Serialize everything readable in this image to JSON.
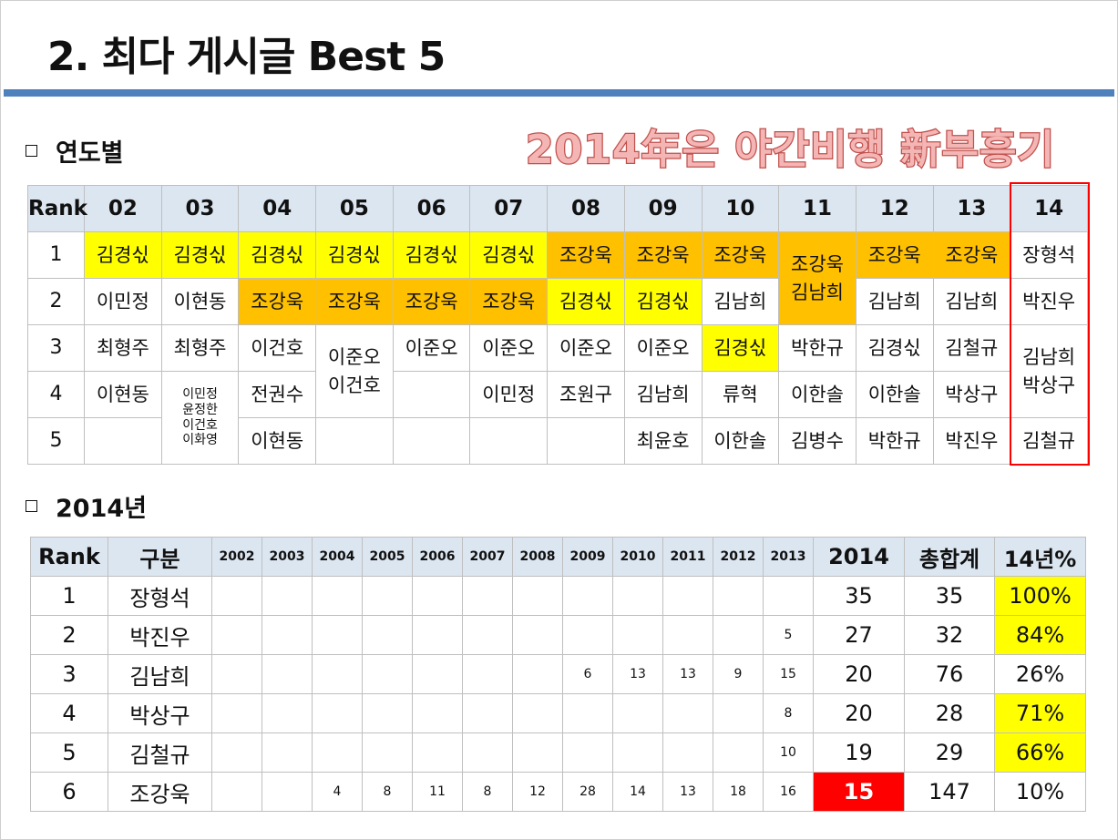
{
  "title": "2. 최다 게시글 Best 5",
  "slogan": "2014年은 야간비행 新부흥기",
  "colors": {
    "accent_bar": "#4f81bd",
    "header_bg": "#dce6f1",
    "yellow": "#ffff00",
    "orange": "#ffc000",
    "red": "#ff0000",
    "slogan": "#c0504d"
  },
  "section_yearly": {
    "heading": "연도별",
    "bullet_icon": "hollow-square"
  },
  "yearly_table": {
    "headers": [
      "Rank",
      "02",
      "03",
      "04",
      "05",
      "06",
      "07",
      "08",
      "09",
      "10",
      "11",
      "12",
      "13",
      "14"
    ],
    "highlighted_column": "14",
    "rows": [
      {
        "rank": "1",
        "cells": [
          {
            "t": "김경싟",
            "bg": "yellow"
          },
          {
            "t": "김경싟",
            "bg": "yellow"
          },
          {
            "t": "김경싟",
            "bg": "yellow"
          },
          {
            "t": "김경싟",
            "bg": "yellow"
          },
          {
            "t": "김경싟",
            "bg": "yellow"
          },
          {
            "t": "김경싟",
            "bg": "yellow"
          },
          {
            "t": "조강욱",
            "bg": "orange"
          },
          {
            "t": "조강욱",
            "bg": "orange"
          },
          {
            "t": "조강욱",
            "bg": "orange"
          },
          {
            "t": "조강욱\n김남희",
            "bg": "orange",
            "rs": 2
          },
          {
            "t": "조강욱",
            "bg": "orange"
          },
          {
            "t": "조강욱",
            "bg": "orange"
          },
          {
            "t": "장형석"
          }
        ]
      },
      {
        "rank": "2",
        "cells": [
          {
            "t": "이민정"
          },
          {
            "t": "이현동"
          },
          {
            "t": "조강욱",
            "bg": "orange"
          },
          {
            "t": "조강욱",
            "bg": "orange"
          },
          {
            "t": "조강욱",
            "bg": "orange"
          },
          {
            "t": "조강욱",
            "bg": "orange"
          },
          {
            "t": "김경싟",
            "bg": "yellow"
          },
          {
            "t": "김경싟",
            "bg": "yellow"
          },
          {
            "t": "김남희"
          },
          null,
          {
            "t": "김남희"
          },
          {
            "t": "김남희"
          },
          {
            "t": "박진우"
          }
        ]
      },
      {
        "rank": "3",
        "cells": [
          {
            "t": "최형주"
          },
          {
            "t": "최형주"
          },
          {
            "t": "이건호"
          },
          {
            "t": "이준오\n이건호",
            "rs": 2
          },
          {
            "t": "이준오"
          },
          {
            "t": "이준오"
          },
          {
            "t": "이준오"
          },
          {
            "t": "이준오"
          },
          {
            "t": "김경싟",
            "bg": "yellow"
          },
          {
            "t": "박한규"
          },
          {
            "t": "김경싟"
          },
          {
            "t": "김철규"
          },
          {
            "t": "김남희\n박상구",
            "rs": 2
          }
        ]
      },
      {
        "rank": "4",
        "cells": [
          {
            "t": "이현동"
          },
          {
            "t": "이민정\n윤정한\n이건호\n이화영",
            "rs": 2,
            "small": true
          },
          {
            "t": "전권수"
          },
          null,
          {
            "t": ""
          },
          {
            "t": "이민정"
          },
          {
            "t": "조원구"
          },
          {
            "t": "김남희"
          },
          {
            "t": "류혁"
          },
          {
            "t": "이한솔"
          },
          {
            "t": "이한솔"
          },
          {
            "t": "박상구"
          },
          null
        ]
      },
      {
        "rank": "5",
        "cells": [
          {
            "t": ""
          },
          null,
          {
            "t": "이현동"
          },
          {
            "t": ""
          },
          {
            "t": ""
          },
          {
            "t": ""
          },
          {
            "t": ""
          },
          {
            "t": "최윤호"
          },
          {
            "t": "이한솔"
          },
          {
            "t": "김병수"
          },
          {
            "t": "박한규"
          },
          {
            "t": "박진우"
          },
          {
            "t": "김철규"
          }
        ]
      }
    ]
  },
  "section_2014": {
    "heading": "2014년",
    "bullet_icon": "hollow-square"
  },
  "table_2014": {
    "headers": [
      "Rank",
      "구분",
      "2002",
      "2003",
      "2004",
      "2005",
      "2006",
      "2007",
      "2008",
      "2009",
      "2010",
      "2011",
      "2012",
      "2013",
      "2014",
      "총합계",
      "14년%"
    ],
    "rows": [
      {
        "rank": "1",
        "name": "장형석",
        "years": [
          "",
          "",
          "",
          "",
          "",
          "",
          "",
          "",
          "",
          "",
          "",
          ""
        ],
        "y2014": "35",
        "total": "35",
        "pct": "100%",
        "pct_bg": "yellow"
      },
      {
        "rank": "2",
        "name": "박진우",
        "years": [
          "",
          "",
          "",
          "",
          "",
          "",
          "",
          "",
          "",
          "",
          "",
          "5"
        ],
        "y2014": "27",
        "total": "32",
        "pct": "84%",
        "pct_bg": "yellow"
      },
      {
        "rank": "3",
        "name": "김남희",
        "years": [
          "",
          "",
          "",
          "",
          "",
          "",
          "",
          "6",
          "13",
          "13",
          "9",
          "15"
        ],
        "y2014": "20",
        "total": "76",
        "pct": "26%"
      },
      {
        "rank": "4",
        "name": "박상구",
        "years": [
          "",
          "",
          "",
          "",
          "",
          "",
          "",
          "",
          "",
          "",
          "",
          "8"
        ],
        "y2014": "20",
        "total": "28",
        "pct": "71%",
        "pct_bg": "yellow"
      },
      {
        "rank": "5",
        "name": "김철규",
        "years": [
          "",
          "",
          "",
          "",
          "",
          "",
          "",
          "",
          "",
          "",
          "",
          "10"
        ],
        "y2014": "19",
        "total": "29",
        "pct": "66%",
        "pct_bg": "yellow"
      },
      {
        "rank": "6",
        "name": "조강욱",
        "years": [
          "",
          "",
          "4",
          "8",
          "11",
          "8",
          "12",
          "28",
          "14",
          "13",
          "18",
          "16"
        ],
        "y2014": "15",
        "y2014_bg": "red",
        "total": "147",
        "pct": "10%"
      }
    ]
  }
}
